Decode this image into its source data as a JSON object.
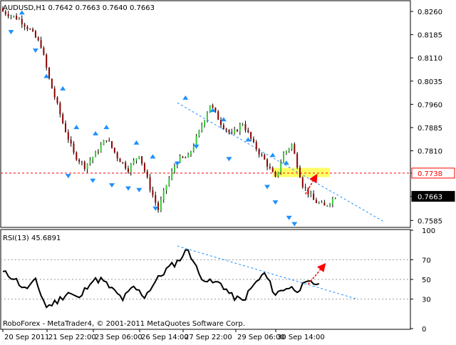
{
  "window": {
    "symbol_header": "AUDUSD,H1  0.7642 0.7663 0.7640 0.7663",
    "copyright": "RoboForex - MetaTrader4, © 2001-2011 MetaQuotes Software Corp."
  },
  "colors": {
    "background": "#ffffff",
    "bull": "#33cc33",
    "bear": "#8b0000",
    "wick": "#000000",
    "fractal": "#1e90ff",
    "trendline": "#1e90ff",
    "resistance": "#ff0000",
    "target_zone": "#ffff66",
    "forecast_arrow": "#ff0000",
    "rsi_line": "#000000"
  },
  "chart_data": [
    {
      "type": "candlestick",
      "title": "AUDUSD,H1  0.7642 0.7663 0.7640 0.7663",
      "ylim": [
        0.7565,
        0.829
      ],
      "y_ticks": [
        "0.8260",
        "0.8185",
        "0.8110",
        "0.8035",
        "0.7960",
        "0.7885",
        "0.7810",
        "0.7738",
        "0.7663",
        "0.7585"
      ],
      "x_ticks": [
        "20 Sep 2011",
        "21 Sep 22:00",
        "23 Sep 06:00",
        "26 Sep 14:00",
        "27 Sep 22:00",
        "29 Sep 06:00",
        "30 Sep 14:00"
      ],
      "close_path": [
        [
          0,
          0.826
        ],
        [
          6,
          0.8235
        ],
        [
          10,
          0.82
        ],
        [
          14,
          0.815
        ],
        [
          17,
          0.804
        ],
        [
          22,
          0.79
        ],
        [
          26,
          0.78
        ],
        [
          30,
          0.776
        ],
        [
          34,
          0.78
        ],
        [
          38,
          0.785
        ],
        [
          42,
          0.779
        ],
        [
          46,
          0.775
        ],
        [
          50,
          0.78
        ],
        [
          54,
          0.769
        ],
        [
          57,
          0.762
        ],
        [
          60,
          0.77
        ],
        [
          64,
          0.778
        ],
        [
          68,
          0.779
        ],
        [
          72,
          0.787
        ],
        [
          76,
          0.796
        ],
        [
          80,
          0.79
        ],
        [
          84,
          0.786
        ],
        [
          88,
          0.79
        ],
        [
          92,
          0.783
        ],
        [
          96,
          0.778
        ],
        [
          100,
          0.772
        ],
        [
          103,
          0.78
        ],
        [
          106,
          0.783
        ],
        [
          110,
          0.77
        ],
        [
          114,
          0.765
        ],
        [
          118,
          0.763
        ],
        [
          122,
          0.7663
        ]
      ],
      "current_price": {
        "value": 0.7663,
        "label": "0.7663"
      },
      "resistance_level": {
        "value": 0.7738,
        "label": "0.7738"
      },
      "target_zone": {
        "x": [
          99,
          120
        ],
        "y": [
          0.7725,
          0.7755
        ]
      },
      "trendline": {
        "start": [
          64,
          0.7965
        ],
        "end": [
          140,
          0.758
        ]
      },
      "fractals_up": [
        [
          7,
          0.825
        ],
        [
          16,
          0.8045
        ],
        [
          22,
          0.8005
        ],
        [
          27,
          0.788
        ],
        [
          34,
          0.786
        ],
        [
          38,
          0.788
        ],
        [
          49,
          0.783
        ],
        [
          55,
          0.7785
        ],
        [
          67,
          0.7975
        ],
        [
          77,
          0.7935
        ],
        [
          81,
          0.7905
        ],
        [
          90,
          0.784
        ],
        [
          99,
          0.779
        ],
        [
          104,
          0.7765
        ]
      ],
      "fractals_down": [
        [
          3,
          0.82
        ],
        [
          12,
          0.814
        ],
        [
          24,
          0.7735
        ],
        [
          33,
          0.772
        ],
        [
          40,
          0.7705
        ],
        [
          46,
          0.7695
        ],
        [
          50,
          0.769
        ],
        [
          56,
          0.763
        ],
        [
          64,
          0.7775
        ],
        [
          71,
          0.783
        ],
        [
          83,
          0.779
        ],
        [
          97,
          0.77
        ],
        [
          100,
          0.765
        ],
        [
          105,
          0.76
        ],
        [
          107,
          0.758
        ]
      ],
      "forecast_arrow": {
        "from": [
          111,
          0.767
        ],
        "to": [
          115,
          0.773
        ]
      }
    },
    {
      "type": "line",
      "title": "RSI(13) 45.6891",
      "ylim": [
        0,
        100
      ],
      "y_ticks": [
        "100",
        "70",
        "50",
        "30",
        "0"
      ],
      "levels": [
        70,
        50,
        30
      ],
      "values": [
        [
          0,
          57
        ],
        [
          4,
          52
        ],
        [
          8,
          40
        ],
        [
          12,
          48
        ],
        [
          16,
          22
        ],
        [
          20,
          28
        ],
        [
          24,
          37
        ],
        [
          28,
          30
        ],
        [
          32,
          48
        ],
        [
          36,
          50
        ],
        [
          40,
          40
        ],
        [
          44,
          30
        ],
        [
          48,
          42
        ],
        [
          52,
          33
        ],
        [
          56,
          48
        ],
        [
          60,
          60
        ],
        [
          64,
          68
        ],
        [
          68,
          81
        ],
        [
          72,
          55
        ],
        [
          76,
          47
        ],
        [
          80,
          46
        ],
        [
          84,
          33
        ],
        [
          88,
          28
        ],
        [
          92,
          44
        ],
        [
          96,
          56
        ],
        [
          100,
          35
        ],
        [
          104,
          42
        ],
        [
          108,
          40
        ],
        [
          112,
          46
        ],
        [
          116,
          45.7
        ]
      ],
      "trendline": {
        "start": [
          64,
          84
        ],
        "end": [
          130,
          30
        ]
      },
      "forecast_arrow": {
        "from": [
          112,
          45
        ],
        "to": [
          118,
          65
        ]
      }
    }
  ]
}
